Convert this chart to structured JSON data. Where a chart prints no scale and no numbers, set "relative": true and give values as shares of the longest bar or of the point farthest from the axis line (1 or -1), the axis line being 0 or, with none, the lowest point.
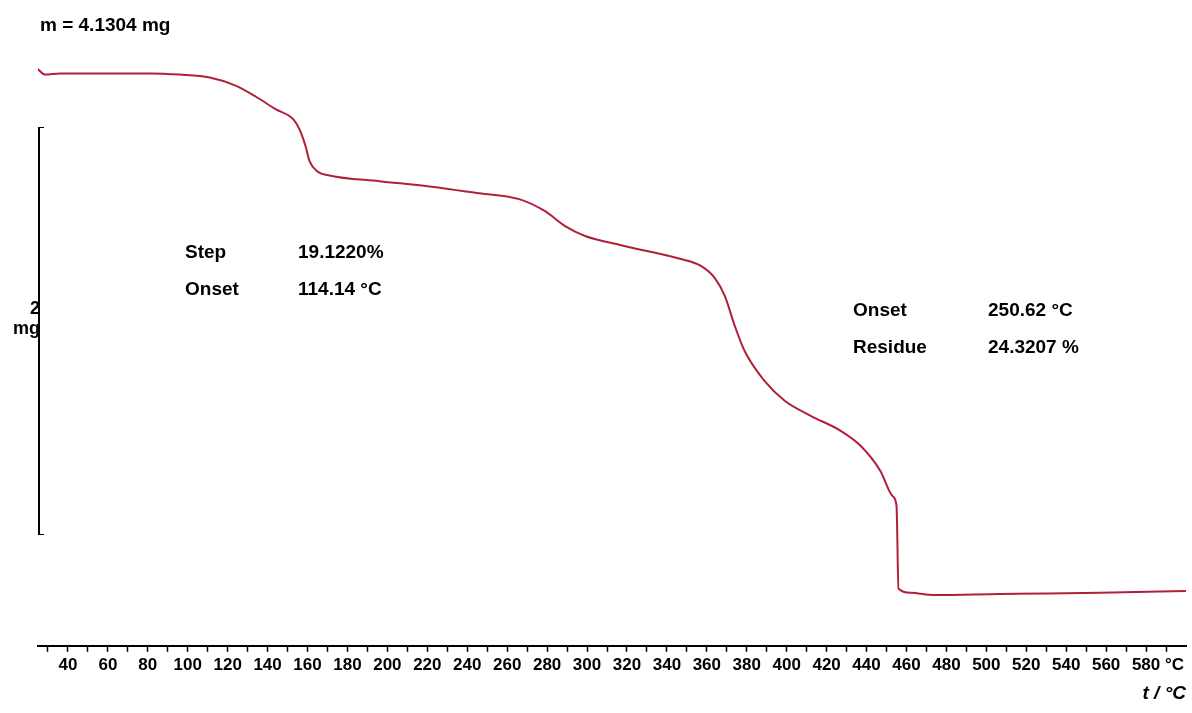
{
  "chart_data": {
    "type": "line",
    "title": "m = 4.1304 mg",
    "xlabel": "t / °C",
    "ylabel": "2 mg",
    "relative": true,
    "grid": false,
    "legend": false,
    "marker": "none",
    "line_style": "solid",
    "xlim": [
      25,
      600
    ],
    "xticks": [
      {
        "value": 30,
        "label": null
      },
      40,
      {
        "value": 50,
        "label": null
      },
      60,
      {
        "value": 70,
        "label": null
      },
      80,
      {
        "value": 90,
        "label": null
      },
      100,
      {
        "value": 110,
        "label": null
      },
      120,
      {
        "value": 130,
        "label": null
      },
      140,
      {
        "value": 150,
        "label": null
      },
      160,
      {
        "value": 170,
        "label": null
      },
      180,
      {
        "value": 190,
        "label": null
      },
      200,
      {
        "value": 210,
        "label": null
      },
      220,
      {
        "value": 230,
        "label": null
      },
      240,
      {
        "value": 250,
        "label": null
      },
      260,
      {
        "value": 270,
        "label": null
      },
      280,
      {
        "value": 290,
        "label": null
      },
      300,
      {
        "value": 310,
        "label": null
      },
      320,
      {
        "value": 330,
        "label": null
      },
      340,
      {
        "value": 350,
        "label": null
      },
      360,
      {
        "value": 370,
        "label": null
      },
      380,
      {
        "value": 390,
        "label": null
      },
      400,
      {
        "value": 410,
        "label": null
      },
      420,
      {
        "value": 430,
        "label": null
      },
      440,
      {
        "value": 450,
        "label": null
      },
      460,
      {
        "value": 470,
        "label": null
      },
      480,
      {
        "value": 490,
        "label": null
      },
      500,
      {
        "value": 510,
        "label": null
      },
      520,
      {
        "value": 530,
        "label": null
      },
      540,
      {
        "value": 550,
        "label": null
      },
      560,
      {
        "value": 570,
        "label": null
      },
      580,
      {
        "value": 590,
        "label": "°C"
      }
    ],
    "annotations": [
      "Step 19.1220%",
      "Onset 114.14 °C",
      "Onset 250.62 °C",
      "Residue 24.3207 %"
    ],
    "series": [
      {
        "color": "#b0203a",
        "x": [
          25,
          28.5,
          36,
          56,
          81,
          96,
          111,
          124,
          134,
          144,
          153,
          156,
          159,
          161,
          165,
          171,
          196,
          221,
          246,
          266,
          279,
          289,
          299,
          317,
          347,
          357,
          364,
          369,
          374,
          379,
          389,
          399,
          412,
          427,
          437,
          447,
          453,
          455,
          456,
          462,
          474,
          507,
          557,
          600
        ],
        "values": [
          1.0,
          0.991,
          0.993,
          0.993,
          0.993,
          0.991,
          0.986,
          0.972,
          0.953,
          0.931,
          0.913,
          0.896,
          0.867,
          0.841,
          0.823,
          0.816,
          0.806,
          0.797,
          0.785,
          0.775,
          0.754,
          0.728,
          0.711,
          0.695,
          0.671,
          0.659,
          0.638,
          0.607,
          0.555,
          0.511,
          0.459,
          0.425,
          0.399,
          0.373,
          0.347,
          0.303,
          0.26,
          0.243,
          0.099,
          0.092,
          0.088,
          0.09,
          0.092,
          0.095
        ]
      }
    ]
  }
}
